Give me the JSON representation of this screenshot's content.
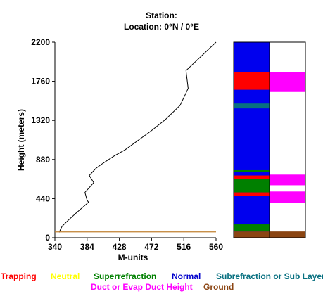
{
  "header": {
    "station_line": "Station:",
    "location_line": "Location:   0°N /   0°E"
  },
  "chart_data": {
    "type": "line",
    "xlabel": "M-units",
    "ylabel": "Height (meters)",
    "xlim": [
      340,
      560
    ],
    "ylim": [
      0,
      2200
    ],
    "x_ticks": [
      "340",
      "384",
      "428",
      "472",
      "516",
      "560"
    ],
    "y_ticks": [
      "0",
      "440",
      "880",
      "1320",
      "1760",
      "2200"
    ],
    "profile": [
      {
        "m": 346,
        "h": 60
      },
      {
        "m": 348,
        "h": 100
      },
      {
        "m": 350,
        "h": 130
      },
      {
        "m": 356,
        "h": 180
      },
      {
        "m": 368,
        "h": 270
      },
      {
        "m": 386,
        "h": 400
      },
      {
        "m": 384,
        "h": 420
      },
      {
        "m": 381,
        "h": 510
      },
      {
        "m": 393,
        "h": 620
      },
      {
        "m": 387,
        "h": 700
      },
      {
        "m": 396,
        "h": 780
      },
      {
        "m": 406,
        "h": 840
      },
      {
        "m": 421,
        "h": 920
      },
      {
        "m": 436,
        "h": 990
      },
      {
        "m": 471,
        "h": 1200
      },
      {
        "m": 491,
        "h": 1330
      },
      {
        "m": 511,
        "h": 1490
      },
      {
        "m": 522,
        "h": 1680
      },
      {
        "m": 519,
        "h": 1880
      },
      {
        "m": 560,
        "h": 2200
      }
    ],
    "ground_line_height": 65,
    "ground_line_color": "#c08030",
    "layer_column": {
      "background": "#0000ee",
      "bands": [
        {
          "from": 1665,
          "to": 1860,
          "category": "Trapping",
          "color": "#ff0000"
        },
        {
          "from": 1455,
          "to": 1510,
          "category": "Subrefraction or Sub Layer",
          "color": "#087080"
        },
        {
          "from": 740,
          "to": 760,
          "category": "Superrefraction",
          "color": "#008000"
        },
        {
          "from": 660,
          "to": 700,
          "category": "Trapping",
          "color": "#ff0000"
        },
        {
          "from": 510,
          "to": 660,
          "category": "Superrefraction",
          "color": "#008000"
        },
        {
          "from": 470,
          "to": 510,
          "category": "Trapping",
          "color": "#ff0000"
        },
        {
          "from": 70,
          "to": 150,
          "category": "Superrefraction",
          "color": "#008000"
        },
        {
          "from": 0,
          "to": 70,
          "category": "Ground",
          "color": "#8b4513"
        }
      ]
    },
    "duct_column": {
      "background": "#ffffff",
      "bands": [
        {
          "from": 1640,
          "to": 1860,
          "category": "Duct or Evap Duct Height",
          "color": "#ff00ff"
        },
        {
          "from": 590,
          "to": 710,
          "category": "Duct or Evap Duct Height",
          "color": "#ff00ff"
        },
        {
          "from": 390,
          "to": 520,
          "category": "Duct or Evap Duct Height",
          "color": "#ff00ff"
        },
        {
          "from": 0,
          "to": 70,
          "category": "Ground",
          "color": "#8b4513"
        }
      ]
    }
  },
  "legend": {
    "row1": [
      {
        "label": "Trapping",
        "color": "#ff0000"
      },
      {
        "label": "Neutral",
        "color": "#ffff00"
      },
      {
        "label": "Superrefraction",
        "color": "#008000"
      },
      {
        "label": "Normal",
        "color": "#0000cc"
      },
      {
        "label": "Subrefraction or Sub Layer",
        "color": "#087080"
      }
    ],
    "row2": [
      {
        "label": "Duct or Evap Duct Height",
        "color": "#ff00ff"
      },
      {
        "label": "Ground",
        "color": "#8b4513"
      }
    ]
  }
}
